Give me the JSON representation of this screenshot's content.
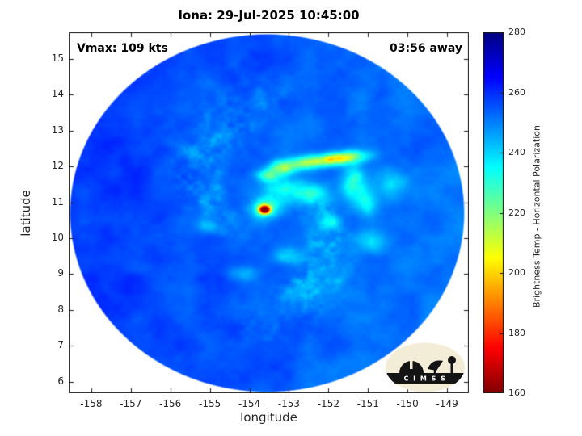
{
  "figure": {
    "title": "Iona: 29-Jul-2025 10:45:00",
    "annotation_left": "Vmax: 109 kts",
    "annotation_right": "03:56 away",
    "xlabel": "longitude",
    "ylabel": "latitude",
    "colorbar_label": "Brightness Temp - Horizontal Polarization",
    "logo_text": "C I M S S"
  },
  "chart_data": {
    "type": "heatmap",
    "title": "Iona: 29-Jul-2025 10:45:00",
    "xlabel": "longitude",
    "ylabel": "latitude",
    "xlim": [
      -158.57,
      -148.45
    ],
    "ylim": [
      5.68,
      15.74
    ],
    "xticks": [
      -158,
      -157,
      -156,
      -155,
      -154,
      -153,
      -152,
      -151,
      -150,
      -149
    ],
    "yticks": [
      6,
      7,
      8,
      9,
      10,
      11,
      12,
      13,
      14,
      15
    ],
    "grid": false,
    "annotations": [
      {
        "text": "Vmax: 109 kts",
        "position": "top-left"
      },
      {
        "text": "03:56 away",
        "position": "top-right"
      }
    ],
    "colorbar": {
      "label": "Brightness Temp - Horizontal Polarization",
      "min": 160,
      "max": 280,
      "ticks": [
        160,
        180,
        200,
        220,
        240,
        260,
        280
      ],
      "colormap": "jet-reversed",
      "position": "right"
    },
    "swath": {
      "center_lon": -153.55,
      "center_lat": 10.7,
      "radius_deg": 5.0,
      "background_temp_K": 254
    },
    "storm_center": {
      "lon": -153.62,
      "lat": 10.8,
      "min_temp_K": 162
    },
    "features": [
      {
        "name": "eye-core",
        "lon": -153.62,
        "lat": 10.8,
        "sx": 0.095,
        "sy": 0.08,
        "dT": 95,
        "rot": 0
      },
      {
        "name": "eye-halo",
        "lon": -153.6,
        "lat": 10.82,
        "sx": 0.26,
        "sy": 0.2,
        "dT": 32,
        "rot": 0
      },
      {
        "name": "warm-streak",
        "lon": -151.75,
        "lat": 12.22,
        "sx": 0.45,
        "sy": 0.12,
        "dT": 50,
        "rot": -6
      },
      {
        "name": "streak-west",
        "lon": -152.6,
        "lat": 12.1,
        "sx": 0.3,
        "sy": 0.13,
        "dT": 26,
        "rot": 0
      },
      {
        "name": "inner-blob",
        "lon": -153.15,
        "lat": 11.97,
        "sx": 0.22,
        "sy": 0.13,
        "dT": 38,
        "rot": 0
      },
      {
        "name": "inner-blob-2",
        "lon": -153.5,
        "lat": 11.75,
        "sx": 0.22,
        "sy": 0.13,
        "dT": 24,
        "rot": 0
      },
      {
        "name": "cyan-patch",
        "lon": -153.2,
        "lat": 11.35,
        "sx": 0.45,
        "sy": 0.28,
        "dT": 16,
        "rot": 0
      },
      {
        "name": "cells-ne",
        "lon": -152.4,
        "lat": 11.25,
        "sx": 0.3,
        "sy": 0.2,
        "dT": 18,
        "rot": 0
      },
      {
        "name": "east-band",
        "lon": -151.35,
        "lat": 11.55,
        "sx": 0.22,
        "sy": 0.35,
        "dT": 24,
        "rot": 0
      },
      {
        "name": "east-band-2",
        "lon": -151.05,
        "lat": 10.95,
        "sx": 0.2,
        "sy": 0.25,
        "dT": 18,
        "rot": 0
      },
      {
        "name": "speck-se",
        "lon": -152.0,
        "lat": 10.45,
        "sx": 0.2,
        "sy": 0.15,
        "dT": 14,
        "rot": 0
      },
      {
        "name": "speck-s",
        "lon": -153.0,
        "lat": 9.5,
        "sx": 0.26,
        "sy": 0.17,
        "dT": 15,
        "rot": 0
      },
      {
        "name": "speck-sw",
        "lon": -154.15,
        "lat": 9.0,
        "sx": 0.24,
        "sy": 0.15,
        "dT": 12,
        "rot": 0
      },
      {
        "name": "speck-w",
        "lon": -155.05,
        "lat": 10.35,
        "sx": 0.2,
        "sy": 0.16,
        "dT": 12,
        "rot": 0
      },
      {
        "name": "speck-e",
        "lon": -150.9,
        "lat": 9.9,
        "sx": 0.24,
        "sy": 0.2,
        "dT": 13,
        "rot": 0
      },
      {
        "name": "patch-far-e",
        "lon": -150.4,
        "lat": 11.5,
        "sx": 0.3,
        "sy": 0.25,
        "dT": 12,
        "rot": 0
      }
    ]
  }
}
